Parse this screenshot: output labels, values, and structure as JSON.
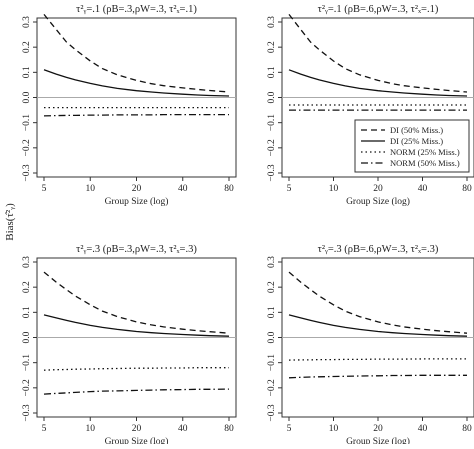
{
  "figure": {
    "y_axis_label": "Bias(τ̂²ᵧ)",
    "x_axis_label": "Group Size (log)"
  },
  "legend": {
    "items": [
      {
        "label": "DI (50% Miss.)",
        "dash": "dashed"
      },
      {
        "label": "DI (25% Miss.)",
        "dash": "solid"
      },
      {
        "label": "NORM (25% Miss.)",
        "dash": "dotted"
      },
      {
        "label": "NORM (50% Miss.)",
        "dash": "dotdash"
      }
    ]
  },
  "chart_data": [
    {
      "type": "line",
      "title": "τ²ᵧ=.1 (ρB=.3,ρW=.3, τ²ₓ=.1)",
      "xlabel": "Group Size (log)",
      "ylabel": "Bias(τ̂²ᵧ)",
      "x_scale": "log",
      "xlim": [
        5,
        80
      ],
      "ylim": [
        -0.3,
        0.3
      ],
      "x_ticks": [
        "5",
        "10",
        "20",
        "40",
        "80"
      ],
      "y_ticks": [
        "−0.3",
        "−0.2",
        "−0.1",
        "0.0",
        "0.1",
        "0.2",
        "0.3"
      ],
      "reference_line": 0,
      "x": [
        5,
        6,
        7,
        8,
        10,
        12,
        15,
        20,
        25,
        30,
        40,
        50,
        60,
        80
      ],
      "series": [
        {
          "name": "DI (50% Miss.)",
          "dash": "dashed",
          "values": [
            0.33,
            0.27,
            0.22,
            0.19,
            0.145,
            0.115,
            0.09,
            0.068,
            0.055,
            0.047,
            0.038,
            0.032,
            0.028,
            0.022
          ]
        },
        {
          "name": "DI (25% Miss.)",
          "dash": "solid",
          "values": [
            0.11,
            0.093,
            0.08,
            0.07,
            0.056,
            0.046,
            0.036,
            0.027,
            0.022,
            0.018,
            0.013,
            0.01,
            0.008,
            0.006
          ]
        },
        {
          "name": "NORM (25% Miss.)",
          "dash": "dotted",
          "values": [
            -0.04,
            -0.04,
            -0.04,
            -0.04,
            -0.04,
            -0.04,
            -0.04,
            -0.04,
            -0.04,
            -0.04,
            -0.04,
            -0.04,
            -0.04,
            -0.04
          ]
        },
        {
          "name": "NORM (50% Miss.)",
          "dash": "dotdash",
          "values": [
            -0.073,
            -0.072,
            -0.071,
            -0.071,
            -0.07,
            -0.07,
            -0.069,
            -0.069,
            -0.069,
            -0.068,
            -0.068,
            -0.068,
            -0.068,
            -0.068
          ]
        }
      ]
    },
    {
      "type": "line",
      "title": "τ²ᵧ=.1 (ρB=.6,ρW=.3, τ²ₓ=.1)",
      "xlabel": "Group Size (log)",
      "ylabel": "",
      "x_scale": "log",
      "xlim": [
        5,
        80
      ],
      "ylim": [
        -0.3,
        0.3
      ],
      "x_ticks": [
        "5",
        "10",
        "20",
        "40",
        "80"
      ],
      "y_ticks": [
        "−0.3",
        "−0.2",
        "−0.1",
        "0.0",
        "0.1",
        "0.2",
        "0.3"
      ],
      "reference_line": 0,
      "x": [
        5,
        6,
        7,
        8,
        10,
        12,
        15,
        20,
        25,
        30,
        40,
        50,
        60,
        80
      ],
      "series": [
        {
          "name": "DI (50% Miss.)",
          "dash": "dashed",
          "values": [
            0.33,
            0.27,
            0.22,
            0.19,
            0.145,
            0.115,
            0.09,
            0.068,
            0.055,
            0.047,
            0.038,
            0.032,
            0.028,
            0.022
          ]
        },
        {
          "name": "DI (25% Miss.)",
          "dash": "solid",
          "values": [
            0.11,
            0.093,
            0.08,
            0.07,
            0.056,
            0.046,
            0.036,
            0.027,
            0.022,
            0.018,
            0.013,
            0.01,
            0.008,
            0.006
          ]
        },
        {
          "name": "NORM (25% Miss.)",
          "dash": "dotted",
          "values": [
            -0.03,
            -0.03,
            -0.03,
            -0.03,
            -0.03,
            -0.03,
            -0.03,
            -0.03,
            -0.03,
            -0.03,
            -0.03,
            -0.03,
            -0.03,
            -0.03
          ]
        },
        {
          "name": "NORM (50% Miss.)",
          "dash": "dotdash",
          "values": [
            -0.05,
            -0.05,
            -0.05,
            -0.05,
            -0.05,
            -0.05,
            -0.05,
            -0.05,
            -0.05,
            -0.05,
            -0.05,
            -0.05,
            -0.05,
            -0.05
          ]
        }
      ]
    },
    {
      "type": "line",
      "title": "τ²ᵧ=.3 (ρB=.3,ρW=.3, τ²ₓ=.3)",
      "xlabel": "Group Size (log)",
      "ylabel": "",
      "x_scale": "log",
      "xlim": [
        5,
        80
      ],
      "ylim": [
        -0.3,
        0.3
      ],
      "x_ticks": [
        "5",
        "10",
        "20",
        "40",
        "80"
      ],
      "y_ticks": [
        "−0.3",
        "−0.2",
        "−0.1",
        "0.0",
        "0.1",
        "0.2",
        "0.3"
      ],
      "reference_line": 0,
      "x": [
        5,
        6,
        7,
        8,
        10,
        12,
        15,
        20,
        25,
        30,
        40,
        50,
        60,
        80
      ],
      "series": [
        {
          "name": "DI (50% Miss.)",
          "dash": "dashed",
          "values": [
            0.26,
            0.22,
            0.19,
            0.165,
            0.13,
            0.105,
            0.083,
            0.062,
            0.05,
            0.042,
            0.033,
            0.027,
            0.023,
            0.017
          ]
        },
        {
          "name": "DI (25% Miss.)",
          "dash": "solid",
          "values": [
            0.09,
            0.078,
            0.068,
            0.06,
            0.048,
            0.04,
            0.032,
            0.024,
            0.019,
            0.016,
            0.012,
            0.009,
            0.007,
            0.005
          ]
        },
        {
          "name": "NORM (25% Miss.)",
          "dash": "dotted",
          "values": [
            -0.13,
            -0.128,
            -0.127,
            -0.126,
            -0.125,
            -0.124,
            -0.123,
            -0.122,
            -0.122,
            -0.121,
            -0.121,
            -0.12,
            -0.12,
            -0.12
          ]
        },
        {
          "name": "NORM (50% Miss.)",
          "dash": "dotdash",
          "values": [
            -0.225,
            -0.222,
            -0.22,
            -0.218,
            -0.215,
            -0.213,
            -0.212,
            -0.21,
            -0.209,
            -0.208,
            -0.207,
            -0.206,
            -0.206,
            -0.205
          ]
        }
      ]
    },
    {
      "type": "line",
      "title": "τ²ᵧ=.3 (ρB=.6,ρW=.3, τ²ₓ=.3)",
      "xlabel": "Group Size (log)",
      "ylabel": "",
      "x_scale": "log",
      "xlim": [
        5,
        80
      ],
      "ylim": [
        -0.3,
        0.3
      ],
      "x_ticks": [
        "5",
        "10",
        "20",
        "40",
        "80"
      ],
      "y_ticks": [
        "−0.3",
        "−0.2",
        "−0.1",
        "0.0",
        "0.1",
        "0.2",
        "0.3"
      ],
      "reference_line": 0,
      "x": [
        5,
        6,
        7,
        8,
        10,
        12,
        15,
        20,
        25,
        30,
        40,
        50,
        60,
        80
      ],
      "series": [
        {
          "name": "DI (50% Miss.)",
          "dash": "dashed",
          "values": [
            0.26,
            0.22,
            0.19,
            0.165,
            0.13,
            0.105,
            0.083,
            0.062,
            0.05,
            0.042,
            0.033,
            0.027,
            0.023,
            0.017
          ]
        },
        {
          "name": "DI (25% Miss.)",
          "dash": "solid",
          "values": [
            0.09,
            0.078,
            0.068,
            0.06,
            0.048,
            0.04,
            0.032,
            0.024,
            0.019,
            0.016,
            0.012,
            0.009,
            0.007,
            0.005
          ]
        },
        {
          "name": "NORM (25% Miss.)",
          "dash": "dotted",
          "values": [
            -0.09,
            -0.089,
            -0.089,
            -0.088,
            -0.088,
            -0.087,
            -0.087,
            -0.086,
            -0.086,
            -0.086,
            -0.085,
            -0.085,
            -0.085,
            -0.085
          ]
        },
        {
          "name": "NORM (50% Miss.)",
          "dash": "dotdash",
          "values": [
            -0.16,
            -0.158,
            -0.157,
            -0.156,
            -0.155,
            -0.154,
            -0.153,
            -0.152,
            -0.151,
            -0.151,
            -0.15,
            -0.15,
            -0.15,
            -0.15
          ]
        }
      ]
    }
  ]
}
